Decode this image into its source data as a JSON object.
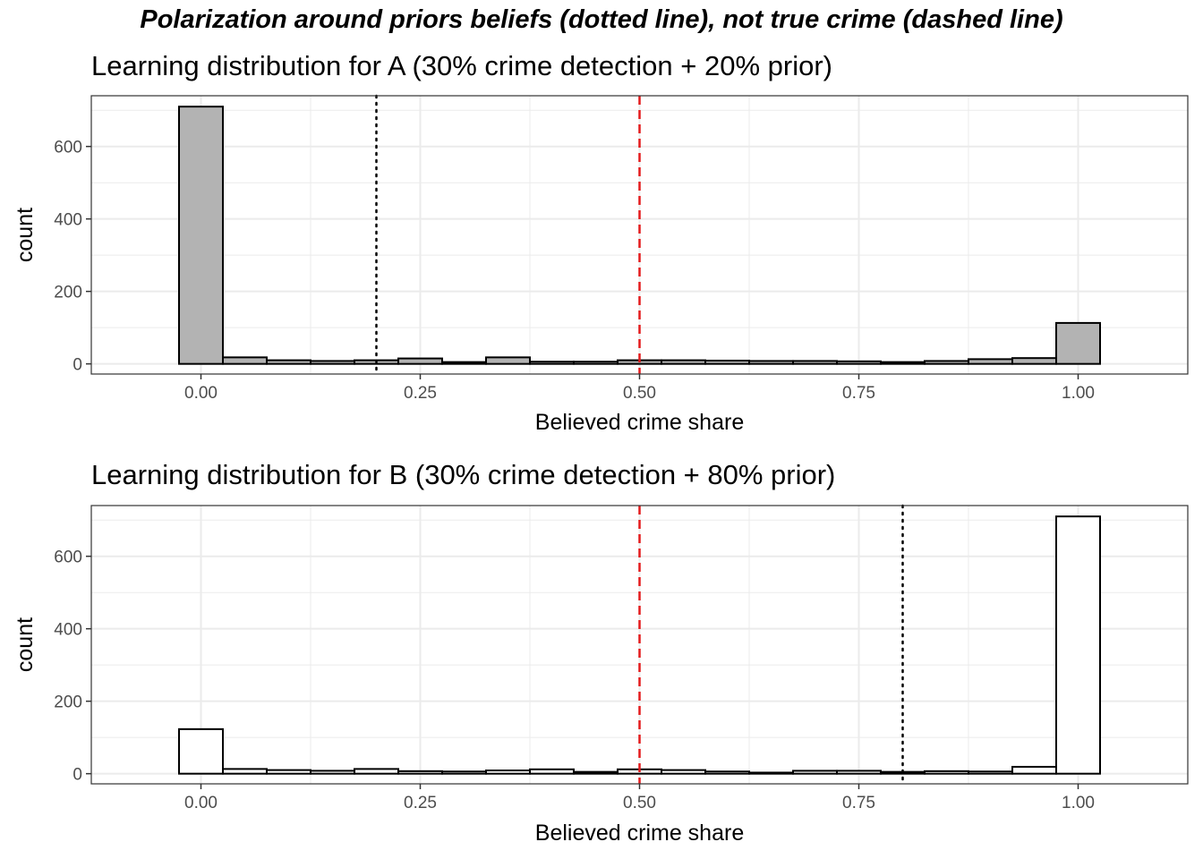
{
  "figure": {
    "title": "Polarization around priors beliefs (dotted line), not true crime (dashed line)"
  },
  "colors": {
    "grid": "#ebebeb",
    "panel_border": "#333333",
    "bar_outline": "#000000",
    "true_crime_line": "#e41a1c",
    "prior_line": "#000000",
    "tick_text": "#4d4d4d"
  },
  "chart_data": [
    {
      "type": "bar",
      "title": "Learning distribution for A (30% crime detection + 20% prior)",
      "xlabel": "Believed crime share",
      "ylabel": "count",
      "xlim": [
        -0.125,
        1.125
      ],
      "ylim": [
        -28,
        740
      ],
      "x_ticks": [
        0.0,
        0.25,
        0.5,
        0.75,
        1.0
      ],
      "x_tick_labels": [
        "0.00",
        "0.25",
        "0.50",
        "0.75",
        "1.00"
      ],
      "y_ticks": [
        0,
        200,
        400,
        600
      ],
      "y_tick_labels": [
        "0",
        "200",
        "400",
        "600"
      ],
      "grid": true,
      "bar_fill": "#b3b3b3",
      "bin_width": 0.05,
      "bin_centers": [
        0.0,
        0.05,
        0.1,
        0.15,
        0.2,
        0.25,
        0.3,
        0.35,
        0.4,
        0.45,
        0.5,
        0.55,
        0.6,
        0.65,
        0.7,
        0.75,
        0.8,
        0.85,
        0.9,
        0.95,
        1.0
      ],
      "values": [
        710,
        18,
        10,
        8,
        10,
        15,
        5,
        18,
        6,
        6,
        10,
        10,
        9,
        8,
        8,
        7,
        5,
        8,
        13,
        16,
        113
      ],
      "reference_lines": [
        {
          "kind": "prior",
          "style": "dotted",
          "x": 0.2
        },
        {
          "kind": "true_crime",
          "style": "dashed",
          "x": 0.5
        }
      ]
    },
    {
      "type": "bar",
      "title": "Learning distribution for B (30% crime detection + 80% prior)",
      "xlabel": "Believed crime share",
      "ylabel": "count",
      "xlim": [
        -0.125,
        1.125
      ],
      "ylim": [
        -28,
        740
      ],
      "x_ticks": [
        0.0,
        0.25,
        0.5,
        0.75,
        1.0
      ],
      "x_tick_labels": [
        "0.00",
        "0.25",
        "0.50",
        "0.75",
        "1.00"
      ],
      "y_ticks": [
        0,
        200,
        400,
        600
      ],
      "y_tick_labels": [
        "0",
        "200",
        "400",
        "600"
      ],
      "grid": true,
      "bar_fill": "#ffffff",
      "bin_width": 0.05,
      "bin_centers": [
        0.0,
        0.05,
        0.1,
        0.15,
        0.2,
        0.25,
        0.3,
        0.35,
        0.4,
        0.45,
        0.5,
        0.55,
        0.6,
        0.65,
        0.7,
        0.75,
        0.8,
        0.85,
        0.9,
        0.95,
        1.0
      ],
      "values": [
        123,
        13,
        10,
        8,
        13,
        7,
        6,
        9,
        12,
        5,
        12,
        10,
        6,
        3,
        8,
        8,
        5,
        7,
        6,
        19,
        710
      ],
      "reference_lines": [
        {
          "kind": "true_crime",
          "style": "dashed",
          "x": 0.5
        },
        {
          "kind": "prior",
          "style": "dotted",
          "x": 0.8
        }
      ]
    }
  ]
}
